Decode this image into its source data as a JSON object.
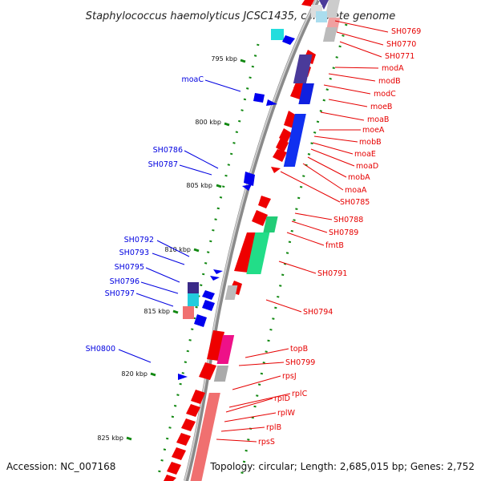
{
  "title": "Staphylococcus haemolyticus JCSC1435, complete genome",
  "footer": {
    "accession": "Accession: NC_007168",
    "topology": "Topology: circular; Length: 2,685,015 bp; Genes: 2,752"
  },
  "colors": {
    "forward": "#ee0000",
    "reverse": "#0000ee",
    "backbone": "#8a8a8a",
    "tick": "#118811"
  },
  "ticks": [
    "795 kbp",
    "800 kbp",
    "805 kbp",
    "810 kbp",
    "815 kbp",
    "820 kbp",
    "825 kbp"
  ],
  "right_genes": [
    "SH0769",
    "SH0770",
    "SH0771",
    "modA",
    "modB",
    "modC",
    "moeB",
    "moaB",
    "moeA",
    "mobB",
    "moaE",
    "moaD",
    "mobA",
    "moaA",
    "SH0785",
    "SH0788",
    "SH0789",
    "fmtB",
    "SH0791",
    "SH0794",
    "topB",
    "SH0799",
    "rpsJ",
    "rplC",
    "rplD",
    "rplW",
    "rplB",
    "rpsS"
  ],
  "left_genes": [
    "moaC",
    "SH0786",
    "SH0787",
    "SH0792",
    "SH0793",
    "SH0795",
    "SH0796",
    "SH0797",
    "SH0800"
  ]
}
